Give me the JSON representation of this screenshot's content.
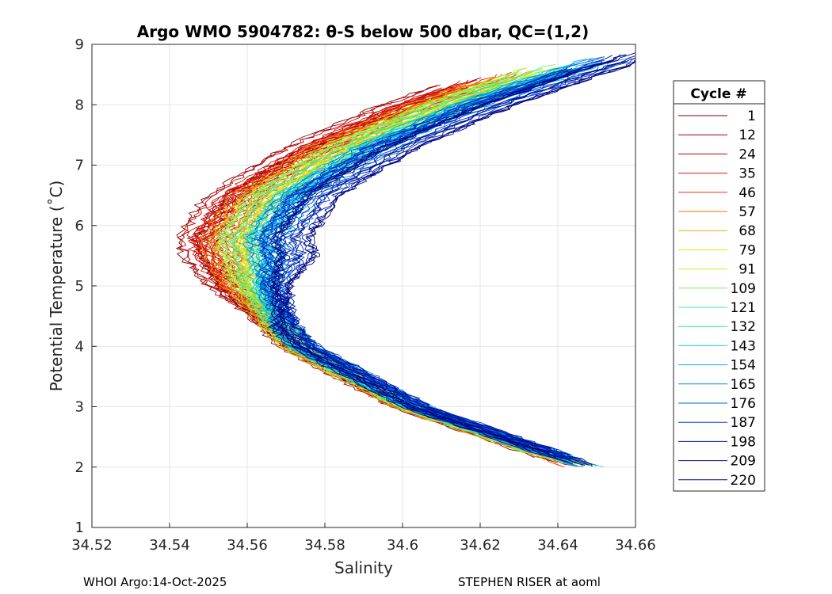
{
  "chart_data": {
    "type": "line",
    "title": "Argo WMO 5904782: θ-S below 500 dbar,  QC=(1,2)",
    "xlabel": "Salinity",
    "ylabel": "Potential Temperature (˚C)",
    "xlim": [
      34.52,
      34.66
    ],
    "ylim": [
      1,
      9
    ],
    "xticks": [
      34.52,
      34.54,
      34.56,
      34.58,
      34.6,
      34.62,
      34.64,
      34.66
    ],
    "xtick_labels": [
      "34.52",
      "34.54",
      "34.56",
      "34.58",
      "34.6",
      "34.62",
      "34.64",
      "34.66"
    ],
    "yticks": [
      1,
      2,
      3,
      4,
      5,
      6,
      7,
      8,
      9
    ],
    "ytick_labels": [
      "1",
      "2",
      "3",
      "4",
      "5",
      "6",
      "7",
      "8",
      "9"
    ],
    "grid": true,
    "colormap": "jet",
    "legend": {
      "title": "Cycle #",
      "placement": "right",
      "entries": [
        {
          "label": "1",
          "color": "#800000"
        },
        {
          "label": "12",
          "color": "#a00000"
        },
        {
          "label": "24",
          "color": "#c00000"
        },
        {
          "label": "35",
          "color": "#dd1010"
        },
        {
          "label": "46",
          "color": "#f02a10"
        },
        {
          "label": "57",
          "color": "#f07000"
        },
        {
          "label": "68",
          "color": "#f0a500"
        },
        {
          "label": "79",
          "color": "#f0e000"
        },
        {
          "label": "91",
          "color": "#c8f020"
        },
        {
          "label": "109",
          "color": "#80f060"
        },
        {
          "label": "121",
          "color": "#40f090"
        },
        {
          "label": "132",
          "color": "#20e8b0"
        },
        {
          "label": "143",
          "color": "#10d8d8"
        },
        {
          "label": "154",
          "color": "#00b8f0"
        },
        {
          "label": "165",
          "color": "#0090e0"
        },
        {
          "label": "176",
          "color": "#0068e0"
        },
        {
          "label": "187",
          "color": "#0040d8"
        },
        {
          "label": "198",
          "color": "#0020b0"
        },
        {
          "label": "209",
          "color": "#001090"
        },
        {
          "label": "220",
          "color": "#000880"
        }
      ]
    },
    "profile_shape": {
      "description": "theta-S curves bending to salinity minimum near 5.5-6 C",
      "anchors": [
        {
          "t": 2.0,
          "s": 34.645
        },
        {
          "t": 3.0,
          "s": 34.6
        },
        {
          "t": 4.0,
          "s": 34.571
        },
        {
          "t": 5.0,
          "s": 34.556
        },
        {
          "t": 5.8,
          "s": 34.552
        },
        {
          "t": 6.5,
          "s": 34.56
        },
        {
          "t": 7.3,
          "s": 34.58
        },
        {
          "t": 8.0,
          "s": 34.605
        },
        {
          "t": 8.9,
          "s": 34.645
        }
      ]
    }
  },
  "footer": {
    "left": "WHOI Argo:14-Oct-2025",
    "right": "STEPHEN RISER at aoml"
  }
}
